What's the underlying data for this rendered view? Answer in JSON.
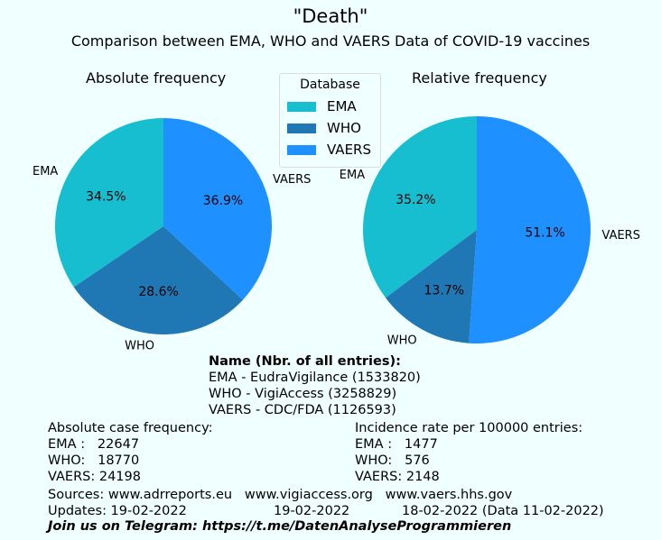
{
  "chart_data": [
    {
      "type": "pie",
      "title": "Absolute frequency",
      "categories": [
        "EMA",
        "WHO",
        "VAERS"
      ],
      "values": [
        34.5,
        28.6,
        36.9
      ],
      "labels": [
        "34.5%",
        "28.6%",
        "36.9%"
      ],
      "start_angle": 90,
      "direction": "counterclockwise"
    },
    {
      "type": "pie",
      "title": "Relative frequency",
      "categories": [
        "EMA",
        "WHO",
        "VAERS"
      ],
      "values": [
        35.2,
        13.7,
        51.1
      ],
      "labels": [
        "35.2%",
        "13.7%",
        "51.1%"
      ],
      "start_angle": 90,
      "direction": "counterclockwise"
    }
  ],
  "title": "\"Death\"",
  "subtitle": "Comparison between EMA, WHO and VAERS Data of COVID-19 vaccines",
  "legend": {
    "title": "Database",
    "placement": "top-center",
    "items": [
      "EMA",
      "WHO",
      "VAERS"
    ]
  },
  "colors": {
    "EMA": "#17becf",
    "WHO": "#1f77b4",
    "VAERS": "#1e90ff"
  },
  "info": {
    "name_header": "Name  (Nbr. of all entries):",
    "names": [
      "EMA - EudraVigilance (1533820)",
      "WHO - VigiAccess (3258829)",
      "VAERS - CDC/FDA (1126593)"
    ],
    "abs_header": "Absolute case frequency:",
    "abs": [
      "EMA :   22647",
      "WHO:   18770",
      "VAERS: 24198"
    ],
    "inc_header": "Incidence rate per 100000 entries:",
    "inc": [
      "EMA :   1477",
      "WHO:   576",
      "VAERS: 2148"
    ],
    "sources": "Sources: www.adrreports.eu   www.vigiaccess.org   www.vaers.hhs.gov",
    "updates": [
      "Updates: 19-02-2022",
      "19-02-2022",
      "18-02-2022 (Data 11-02-2022)"
    ],
    "telegram": "Join us on Telegram: https://t.me/DatenAnalyseProgrammieren"
  }
}
